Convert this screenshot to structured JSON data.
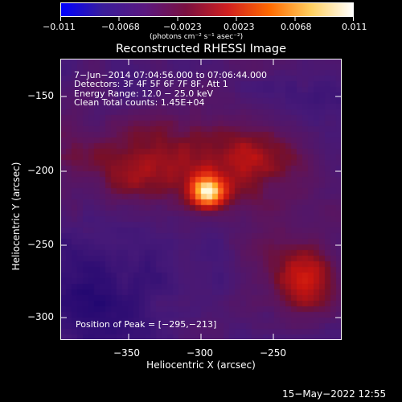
{
  "colorbar": {
    "tick_labels": [
      "−0.011",
      "−0.0068",
      "−0.0023",
      "0.0023",
      "0.0068",
      "0.011"
    ],
    "units": "(photons cm⁻² s⁻¹ asec⁻²)",
    "colors": [
      "#0000ff",
      "#3a1d9a",
      "#5a1880",
      "#7a1040",
      "#d02020",
      "#ff6a00",
      "#ffd060",
      "#ffffff"
    ]
  },
  "plot": {
    "title": "Reconstructed RHESSI Image",
    "info_lines": [
      "7−Jun−2014 07:04:56.000 to 07:06:44.000",
      "Detectors: 3F 4F 5F 6F 7F 8F, Att 1",
      "Energy Range: 12.0 − 25.0 keV",
      "Clean     Total counts: 1.45E+04"
    ],
    "peak_text": "Position of Peak = [−295,−213]",
    "xlabel": "Heliocentric X (arcsec)",
    "ylabel": "Heliocentric Y (arcsec)",
    "x_ticks": [
      "−350",
      "−300",
      "−250"
    ],
    "y_ticks": [
      "−150",
      "−200",
      "−250",
      "−300"
    ]
  },
  "footer": {
    "timestamp": "15−May−2022 12:55"
  }
}
